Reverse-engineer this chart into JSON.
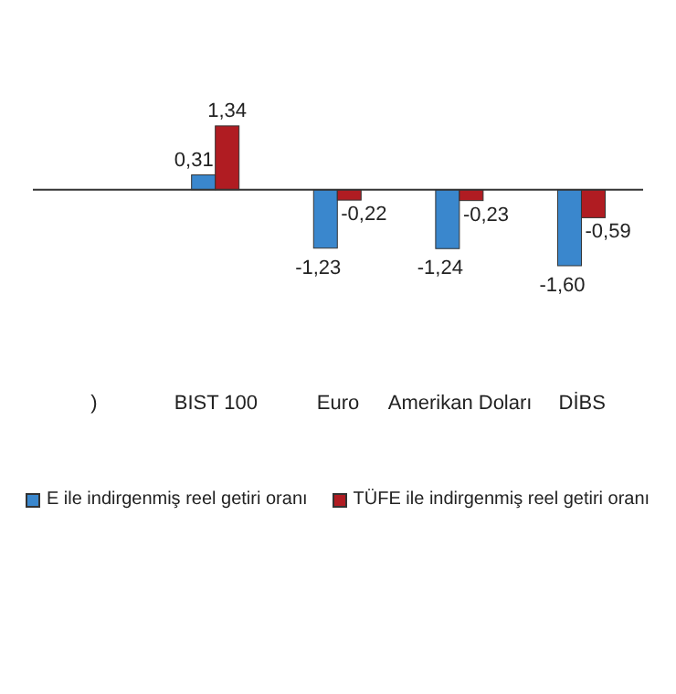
{
  "chart_data": {
    "type": "bar",
    "categories": [
      ")",
      "BIST 100",
      "Euro",
      "Amerikan Doları",
      "DİBS"
    ],
    "series": [
      {
        "name": "E ile indirgenmiş reel getiri oranı",
        "color": "#3a87cd",
        "values": [
          null,
          0.31,
          -1.23,
          -1.24,
          -1.6
        ],
        "value_labels": [
          null,
          "0,31",
          "-1,23",
          "-1,24",
          "-1,60"
        ]
      },
      {
        "name": "TÜFE ile indirgenmiş reel getiri oranı",
        "color": "#b01c22",
        "values": [
          null,
          1.34,
          -0.22,
          -0.23,
          -0.59
        ],
        "value_labels": [
          null,
          "1,34",
          "-0,22",
          "-0,23",
          "-0,59"
        ]
      }
    ],
    "legend": "bottom"
  }
}
